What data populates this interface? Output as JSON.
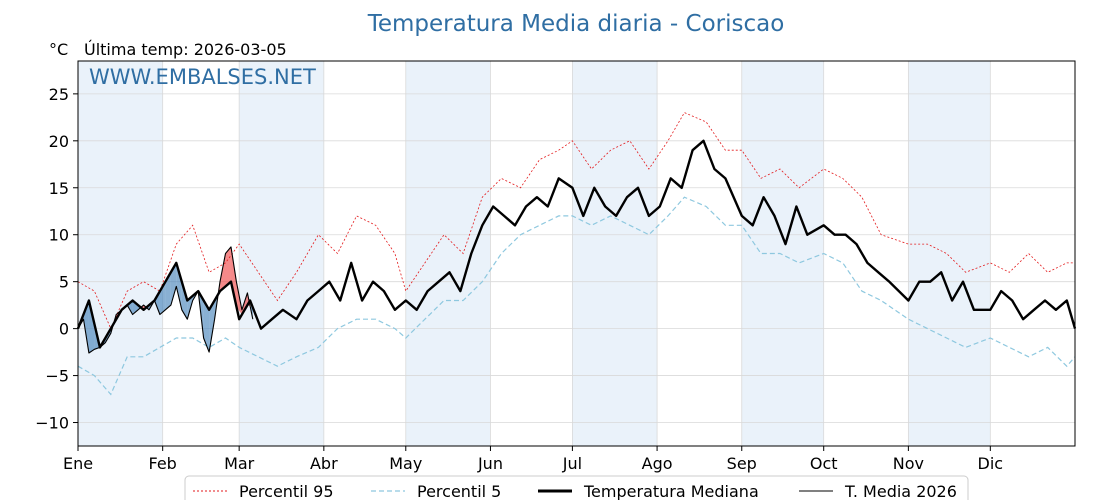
{
  "chart_data": {
    "type": "line",
    "title": "Temperatura Media diaria - Coriscao",
    "unit": "°C",
    "last_temp_label": "Última temp: 2026-03-05",
    "watermark": "WWW.EMBALSES.NET",
    "ylim": [
      -12.5,
      28.5
    ],
    "yticks": [
      -10,
      -5,
      0,
      5,
      10,
      15,
      20,
      25
    ],
    "xlim": [
      0,
      365
    ],
    "month_labels": [
      "Ene",
      "Feb",
      "Mar",
      "Abr",
      "May",
      "Jun",
      "Jul",
      "Ago",
      "Sep",
      "Oct",
      "Nov",
      "Dic"
    ],
    "month_starts": [
      0,
      31,
      59,
      90,
      120,
      151,
      181,
      212,
      243,
      273,
      304,
      334
    ],
    "grid": true,
    "legend_position": "bottom",
    "colors": {
      "p95": "#e31a1c",
      "p5": "#8ec8df",
      "median": "#000000",
      "current": "#000000",
      "fill_below": "#3b7bb5",
      "fill_above": "#ef3b3b",
      "shade": "#eaf2fa",
      "title": "#2f6ea3"
    },
    "series": [
      {
        "name": "Percentil 95",
        "style": "dotted-red",
        "x": [
          0,
          6,
          12,
          18,
          24,
          30,
          36,
          42,
          48,
          54,
          59,
          66,
          73,
          80,
          88,
          95,
          102,
          109,
          116,
          120,
          127,
          134,
          141,
          148,
          155,
          162,
          169,
          176,
          181,
          188,
          195,
          202,
          209,
          216,
          222,
          230,
          237,
          243,
          250,
          257,
          264,
          273,
          280,
          287,
          294,
          304,
          311,
          318,
          325,
          334,
          341,
          348,
          355,
          362,
          365
        ],
        "y": [
          5,
          4,
          0,
          4,
          5,
          4,
          9,
          11,
          6,
          7,
          9,
          6,
          3,
          6,
          10,
          8,
          12,
          11,
          8,
          4,
          7,
          10,
          8,
          14,
          16,
          15,
          18,
          19,
          20,
          17,
          19,
          20,
          17,
          20,
          23,
          22,
          19,
          19,
          16,
          17,
          15,
          17,
          16,
          14,
          10,
          9,
          9,
          8,
          6,
          7,
          6,
          8,
          6,
          7,
          7
        ]
      },
      {
        "name": "Percentil 5",
        "style": "dashed-lightblue",
        "x": [
          0,
          6,
          12,
          18,
          24,
          30,
          36,
          42,
          48,
          54,
          59,
          66,
          73,
          80,
          88,
          95,
          102,
          109,
          116,
          120,
          127,
          134,
          141,
          148,
          155,
          162,
          169,
          176,
          181,
          188,
          195,
          202,
          209,
          216,
          222,
          230,
          237,
          243,
          250,
          257,
          264,
          273,
          280,
          287,
          294,
          304,
          311,
          318,
          325,
          334,
          341,
          348,
          355,
          362,
          365
        ],
        "y": [
          -4,
          -5,
          -7,
          -3,
          -3,
          -2,
          -1,
          -1,
          -2,
          -1,
          -2,
          -3,
          -4,
          -3,
          -2,
          0,
          1,
          1,
          0,
          -1,
          1,
          3,
          3,
          5,
          8,
          10,
          11,
          12,
          12,
          11,
          12,
          11,
          10,
          12,
          14,
          13,
          11,
          11,
          8,
          8,
          7,
          8,
          7,
          4,
          3,
          1,
          0,
          -1,
          -2,
          -1,
          -2,
          -3,
          -2,
          -4,
          -3
        ]
      },
      {
        "name": "Temperatura Mediana",
        "style": "thick-black",
        "x": [
          0,
          4,
          8,
          12,
          16,
          20,
          24,
          28,
          32,
          36,
          40,
          44,
          48,
          52,
          56,
          59,
          63,
          67,
          71,
          75,
          80,
          84,
          88,
          92,
          96,
          100,
          104,
          108,
          112,
          116,
          120,
          124,
          128,
          132,
          136,
          140,
          144,
          148,
          152,
          156,
          160,
          164,
          168,
          172,
          176,
          181,
          185,
          189,
          193,
          197,
          201,
          205,
          209,
          213,
          217,
          221,
          225,
          229,
          233,
          237,
          243,
          247,
          251,
          255,
          259,
          263,
          267,
          273,
          277,
          281,
          285,
          289,
          293,
          297,
          304,
          308,
          312,
          316,
          320,
          324,
          328,
          334,
          338,
          342,
          346,
          350,
          354,
          358,
          362,
          365
        ],
        "y": [
          0,
          3,
          -2,
          0,
          2,
          3,
          2,
          3,
          5,
          7,
          3,
          4,
          2,
          4,
          5,
          1,
          3,
          0,
          1,
          2,
          1,
          3,
          4,
          5,
          3,
          7,
          3,
          5,
          4,
          2,
          3,
          2,
          4,
          5,
          6,
          4,
          8,
          11,
          13,
          12,
          11,
          13,
          14,
          13,
          16,
          15,
          12,
          15,
          13,
          12,
          14,
          15,
          12,
          13,
          16,
          15,
          19,
          20,
          17,
          16,
          12,
          11,
          14,
          12,
          9,
          13,
          10,
          11,
          10,
          10,
          9,
          7,
          6,
          5,
          3,
          5,
          5,
          6,
          3,
          5,
          2,
          2,
          4,
          3,
          1,
          2,
          3,
          2,
          3,
          0
        ]
      },
      {
        "name": "T. Media 2026",
        "style": "thin-black",
        "x": [
          0,
          2,
          4,
          6,
          8,
          10,
          12,
          14,
          16,
          18,
          20,
          22,
          24,
          26,
          28,
          30,
          32,
          34,
          36,
          38,
          40,
          42,
          44,
          46,
          48,
          50,
          52,
          54,
          56,
          58,
          60,
          62,
          64
        ],
        "y": [
          0,
          1,
          -2.6,
          -2.2,
          -2,
          -1.5,
          -0.5,
          1.5,
          2,
          2.5,
          1.5,
          2,
          2.5,
          2,
          3,
          1.5,
          2,
          2.5,
          4.5,
          2,
          1,
          3,
          4,
          -1,
          -2.5,
          1,
          5,
          8,
          8.7,
          5,
          2,
          3.8,
          1
        ]
      }
    ]
  },
  "legend": {
    "items": [
      {
        "label": "Percentil 95"
      },
      {
        "label": "Percentil 5"
      },
      {
        "label": "Temperatura Mediana"
      },
      {
        "label": "T. Media 2026"
      }
    ]
  }
}
